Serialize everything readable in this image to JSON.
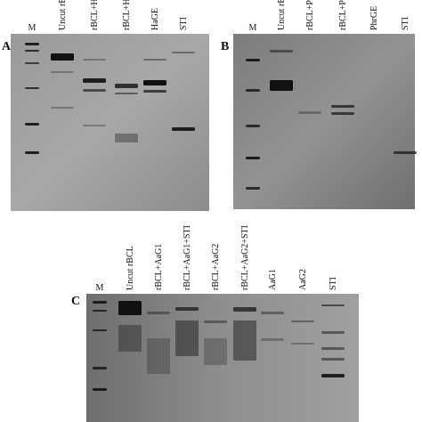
{
  "panels": [
    {
      "label": "A",
      "lanes": [
        "M",
        "Uncut rBCL",
        "rBCL+HaGE",
        "rBCL+HaGE+STI",
        "HaGE",
        "STI"
      ]
    },
    {
      "label": "B",
      "lanes": [
        "M",
        "Uncut rBCL",
        "rBCL+PhrGE",
        "rBCL+PhrGE+STI",
        "PhrGE",
        "STI"
      ]
    },
    {
      "label": "C",
      "lanes": [
        "M",
        "Uncut rBCL",
        "rBCL+AaG1",
        "rBCL+AaG1+STI",
        "rBCL+AaG2",
        "rBCL+AaG2+STI",
        "AaG1",
        "AaG2",
        "STI"
      ]
    }
  ]
}
